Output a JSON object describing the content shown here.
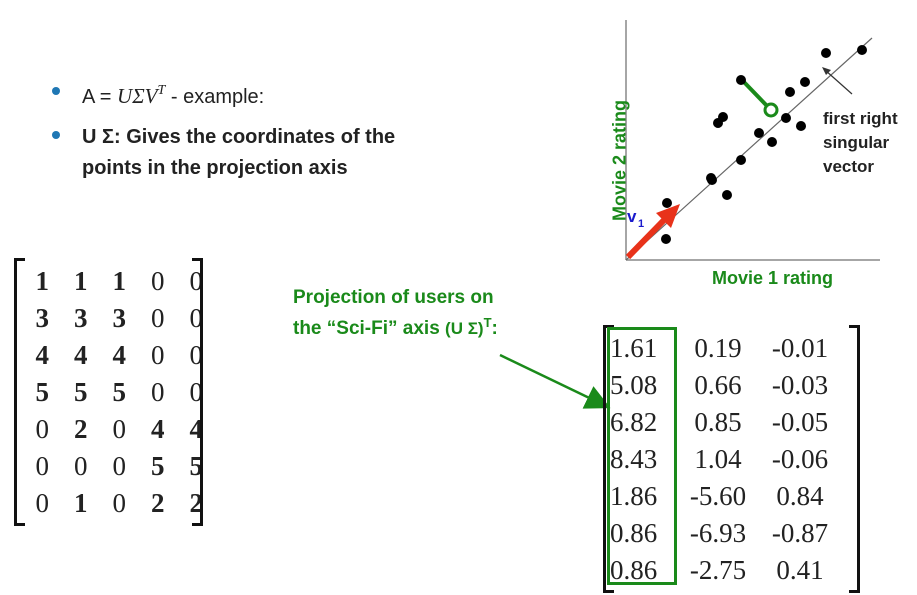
{
  "bullets": [
    {
      "prefix": "A = ",
      "math": "UΣV",
      "sup": "T",
      "suffix": " - example:"
    },
    {
      "text": "U Σ:  Gives the coordinates of the points in the projection axis"
    }
  ],
  "matrix_A": [
    [
      "1",
      "1",
      "1",
      "0",
      "0"
    ],
    [
      "3",
      "3",
      "3",
      "0",
      "0"
    ],
    [
      "4",
      "4",
      "4",
      "0",
      "0"
    ],
    [
      "5",
      "5",
      "5",
      "0",
      "0"
    ],
    [
      "0",
      "2",
      "0",
      "4",
      "4"
    ],
    [
      "0",
      "0",
      "0",
      "5",
      "5"
    ],
    [
      "0",
      "1",
      "0",
      "2",
      "2"
    ]
  ],
  "projection_label": {
    "line1": "Projection of users on",
    "line2": "the “Sci-Fi” axis ",
    "math": "(U Σ)",
    "sup": "T",
    "tail": ":"
  },
  "matrix_US": [
    [
      "1.61",
      "0.19",
      "-0.01"
    ],
    [
      "5.08",
      "0.66",
      "-0.03"
    ],
    [
      "6.82",
      "0.85",
      "-0.05"
    ],
    [
      "8.43",
      "1.04",
      "-0.06"
    ],
    [
      "1.86",
      "-5.60",
      "0.84"
    ],
    [
      "0.86",
      "-6.93",
      "-0.87"
    ],
    [
      "0.86",
      "-2.75",
      "0.41"
    ]
  ],
  "plot": {
    "xlabel": "Movie 1 rating",
    "ylabel": "Movie 2 rating",
    "vector_label": "v",
    "vector_sub": "1",
    "annotation": [
      "first right",
      "singular",
      "vector"
    ]
  },
  "colors": {
    "accent_green": "#1a8a1a",
    "bullet_blue": "#1f77b4",
    "vector_red": "#e8321a",
    "vector_label_blue": "#1a1acc"
  }
}
